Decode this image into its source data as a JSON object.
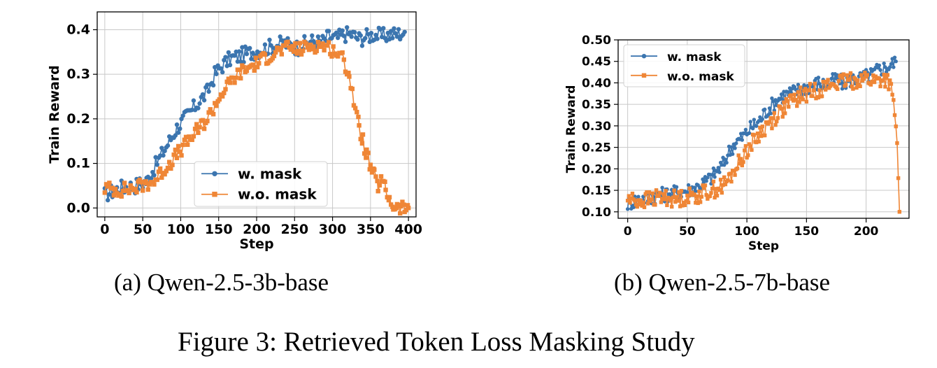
{
  "figure_caption": "Figure 3: Retrieved Token Loss Masking Study",
  "colors": {
    "w_mask": "#3b75af",
    "wo_mask": "#ef8636",
    "grid": "#c8c8c8"
  },
  "chart_data": [
    {
      "type": "line",
      "subcaption": "(a) Qwen-2.5-3b-base",
      "xlabel": "Step",
      "ylabel": "Train Reward",
      "xlim": [
        -10,
        410
      ],
      "ylim": [
        -0.02,
        0.44
      ],
      "xticks": [
        0,
        50,
        100,
        150,
        200,
        250,
        300,
        350,
        400
      ],
      "yticks": [
        0.0,
        0.1,
        0.2,
        0.3,
        0.4
      ],
      "ytick_labels": [
        "0.0",
        "0.1",
        "0.2",
        "0.3",
        "0.4"
      ],
      "grid": true,
      "legend_position": "lower-center",
      "series": [
        {
          "name": "w. mask",
          "color": "#3b75af",
          "marker": "circle",
          "x": [
            0,
            20,
            40,
            55,
            65,
            75,
            85,
            95,
            105,
            115,
            125,
            135,
            145,
            155,
            165,
            175,
            185,
            195,
            205,
            215,
            225,
            235,
            245,
            255,
            265,
            275,
            285,
            295,
            305,
            315,
            325,
            335,
            345,
            355,
            365,
            375,
            385,
            395
          ],
          "values": [
            0.03,
            0.045,
            0.05,
            0.06,
            0.09,
            0.12,
            0.15,
            0.18,
            0.2,
            0.22,
            0.24,
            0.26,
            0.3,
            0.32,
            0.335,
            0.34,
            0.345,
            0.35,
            0.355,
            0.36,
            0.365,
            0.37,
            0.365,
            0.36,
            0.37,
            0.375,
            0.37,
            0.385,
            0.38,
            0.39,
            0.39,
            0.38,
            0.385,
            0.39,
            0.385,
            0.39,
            0.39,
            0.395
          ]
        },
        {
          "name": "w.o. mask",
          "color": "#ef8636",
          "marker": "square",
          "x": [
            0,
            20,
            40,
            55,
            65,
            75,
            85,
            95,
            105,
            115,
            125,
            135,
            145,
            155,
            165,
            175,
            185,
            195,
            205,
            215,
            225,
            235,
            245,
            255,
            265,
            275,
            285,
            295,
            305,
            315,
            322,
            328,
            335,
            340,
            345,
            350,
            355,
            360,
            365,
            370,
            375,
            380,
            385,
            390,
            395,
            400
          ],
          "values": [
            0.045,
            0.04,
            0.045,
            0.055,
            0.06,
            0.08,
            0.1,
            0.12,
            0.14,
            0.16,
            0.18,
            0.2,
            0.23,
            0.26,
            0.28,
            0.3,
            0.31,
            0.32,
            0.33,
            0.34,
            0.35,
            0.355,
            0.36,
            0.355,
            0.36,
            0.365,
            0.365,
            0.36,
            0.35,
            0.33,
            0.3,
            0.24,
            0.18,
            0.15,
            0.12,
            0.09,
            0.07,
            0.05,
            0.06,
            0.04,
            0.02,
            0.005,
            0.0,
            0.0,
            0.0,
            0.0
          ]
        }
      ]
    },
    {
      "type": "line",
      "subcaption": "(b) Qwen-2.5-7b-base",
      "xlabel": "Step",
      "ylabel": "Train Reward",
      "xlim": [
        -8,
        236
      ],
      "ylim": [
        0.085,
        0.5
      ],
      "xticks": [
        0,
        50,
        100,
        150,
        200
      ],
      "yticks": [
        0.1,
        0.15,
        0.2,
        0.25,
        0.3,
        0.35,
        0.4,
        0.45,
        0.5
      ],
      "ytick_labels": [
        "0.10",
        "0.15",
        "0.20",
        "0.25",
        "0.30",
        "0.35",
        "0.40",
        "0.45",
        "0.50"
      ],
      "grid": true,
      "legend_position": "upper-left",
      "series": [
        {
          "name": "w. mask",
          "color": "#3b75af",
          "marker": "circle",
          "x": [
            0,
            10,
            20,
            30,
            40,
            50,
            60,
            70,
            80,
            85,
            90,
            95,
            100,
            105,
            110,
            115,
            120,
            125,
            130,
            135,
            140,
            145,
            150,
            155,
            160,
            165,
            170,
            175,
            180,
            185,
            190,
            195,
            200,
            205,
            210,
            215,
            220,
            225
          ],
          "values": [
            0.12,
            0.13,
            0.135,
            0.14,
            0.145,
            0.15,
            0.16,
            0.18,
            0.21,
            0.24,
            0.26,
            0.27,
            0.285,
            0.3,
            0.31,
            0.33,
            0.345,
            0.36,
            0.37,
            0.375,
            0.38,
            0.385,
            0.39,
            0.395,
            0.4,
            0.395,
            0.4,
            0.41,
            0.4,
            0.405,
            0.41,
            0.41,
            0.415,
            0.42,
            0.43,
            0.435,
            0.44,
            0.45
          ]
        },
        {
          "name": "w.o. mask",
          "color": "#ef8636",
          "marker": "square",
          "x": [
            0,
            10,
            20,
            30,
            40,
            50,
            60,
            70,
            80,
            85,
            90,
            95,
            100,
            105,
            110,
            115,
            120,
            125,
            130,
            135,
            140,
            145,
            150,
            155,
            160,
            165,
            170,
            175,
            180,
            185,
            190,
            195,
            200,
            205,
            210,
            215,
            220,
            222,
            224,
            226,
            228
          ],
          "values": [
            0.13,
            0.125,
            0.13,
            0.135,
            0.13,
            0.135,
            0.14,
            0.15,
            0.16,
            0.175,
            0.2,
            0.22,
            0.245,
            0.26,
            0.28,
            0.295,
            0.31,
            0.325,
            0.34,
            0.35,
            0.36,
            0.37,
            0.375,
            0.38,
            0.385,
            0.39,
            0.395,
            0.4,
            0.4,
            0.405,
            0.405,
            0.41,
            0.41,
            0.405,
            0.405,
            0.41,
            0.4,
            0.36,
            0.33,
            0.25,
            0.1
          ]
        }
      ]
    }
  ]
}
